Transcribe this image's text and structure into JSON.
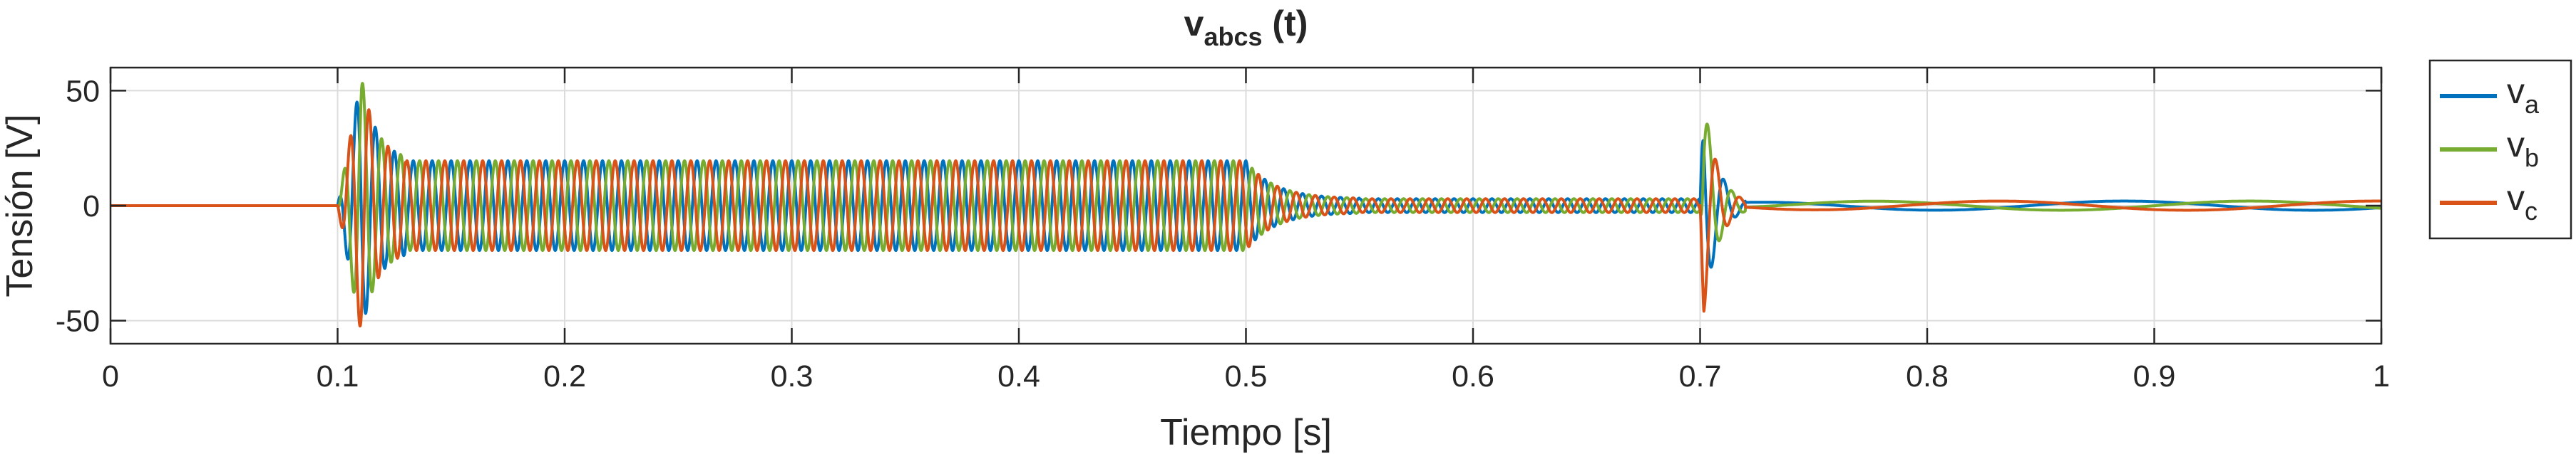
{
  "chart_data": {
    "type": "line",
    "title": {
      "main": "v",
      "sub": "abcs",
      "rest": " (t)"
    },
    "xlabel": "Tiempo [s]",
    "ylabel": "Tensión [V]",
    "xlim": [
      0,
      1
    ],
    "ylim": [
      -60,
      60
    ],
    "xticks": [
      0,
      0.1,
      0.2,
      0.3,
      0.4,
      0.5,
      0.6,
      0.7,
      0.8,
      0.9,
      1
    ],
    "xtick_labels": [
      "0",
      "0.1",
      "0.2",
      "0.3",
      "0.4",
      "0.5",
      "0.6",
      "0.7",
      "0.8",
      "0.9",
      "1"
    ],
    "yticks": [
      -50,
      0,
      50
    ],
    "ytick_labels": [
      "-50",
      "0",
      "50"
    ],
    "grid": true,
    "legend_position": "outside-right",
    "series": [
      {
        "name": "v",
        "sub": "a",
        "color": "#0072BD",
        "phase_deg": 0
      },
      {
        "name": "v",
        "sub": "b",
        "color": "#77AC30",
        "phase_deg": -120
      },
      {
        "name": "v",
        "sub": "c",
        "color": "#D95319",
        "phase_deg": 120
      }
    ],
    "waveform": {
      "frequency_hz": 120,
      "pre_start": {
        "t_end": 0.1,
        "amplitude": 0
      },
      "transient_1": {
        "t_start": 0.1,
        "t_end": 0.13,
        "peak": 56
      },
      "steady_1": {
        "t_start": 0.13,
        "t_end": 0.5,
        "amplitude": 19.5
      },
      "decay": {
        "t_start": 0.5,
        "t_end": 0.55,
        "amplitude_end": 3
      },
      "steady_2": {
        "t_start": 0.55,
        "t_end": 0.7,
        "amplitude": 3
      },
      "transient_2": {
        "t_start": 0.7,
        "t_end": 0.72,
        "peak": 60
      },
      "post": {
        "t_start": 0.72,
        "t_end": 1.0,
        "amplitude": 2,
        "frequency_hz": 6
      }
    }
  }
}
